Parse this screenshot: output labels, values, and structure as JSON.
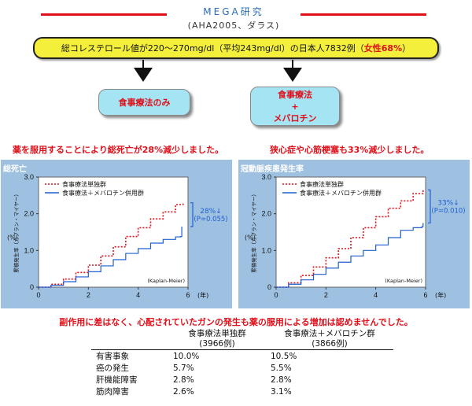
{
  "header": {
    "title": "MEGA研究",
    "subtitle": "(AHA2005、ダラス)"
  },
  "top_box": {
    "text_main": "総コレステロール値が220～270mg/dl（平均243mg/dl）の日本人7832例（",
    "text_highlight": "女性68%",
    "text_close": "）"
  },
  "groups": {
    "diet_only": "食事療法のみ",
    "diet_plus_line1": "食事療法",
    "diet_plus_line2": "+",
    "diet_plus_line3": "メバロチン"
  },
  "conclusions": {
    "left": "薬を服用することにより総死亡が28%減少しました。",
    "right": "狭心症や心筋梗塞も33%減少しました。"
  },
  "colors": {
    "red_series": "#e0101a",
    "blue_series": "#1f5fd0",
    "panel_bg": "#9fc1e1",
    "yellow_box": "#f3ef3a",
    "group_box": "#a5e4f2"
  },
  "chart_data": [
    {
      "type": "line",
      "title": "総死亡",
      "ylabel": "累積発生率（カプラン・マイヤー）",
      "y_unit": "(%)",
      "x_unit": "(年)",
      "xlim": [
        0,
        6
      ],
      "ylim": [
        0,
        3.0
      ],
      "x_ticks": [
        "0",
        "2",
        "4",
        "6"
      ],
      "y_ticks": [
        "0",
        "1.0",
        "2.0",
        "3.0"
      ],
      "annotation_value": "28%↓",
      "annotation_p": "(P=0.055)",
      "method_label": "(Kaplan-Meier)",
      "series": [
        {
          "name": "食事療法単独群",
          "style": "dotted",
          "color": "#e0101a",
          "points": [
            [
              0,
              0
            ],
            [
              0.5,
              0.08
            ],
            [
              1,
              0.22
            ],
            [
              1.5,
              0.4
            ],
            [
              2,
              0.6
            ],
            [
              2.5,
              0.85
            ],
            [
              3,
              1.1
            ],
            [
              3.5,
              1.38
            ],
            [
              4,
              1.62
            ],
            [
              4.5,
              1.86
            ],
            [
              5,
              2.05
            ],
            [
              5.5,
              2.25
            ],
            [
              5.8,
              2.3
            ]
          ]
        },
        {
          "name": "食事療法＋メバロチン併用群",
          "style": "solid",
          "color": "#1f5fd0",
          "points": [
            [
              0,
              0
            ],
            [
              0.5,
              0.05
            ],
            [
              1,
              0.15
            ],
            [
              1.5,
              0.28
            ],
            [
              2,
              0.42
            ],
            [
              2.5,
              0.58
            ],
            [
              3,
              0.75
            ],
            [
              3.5,
              0.92
            ],
            [
              4,
              1.05
            ],
            [
              4.5,
              1.2
            ],
            [
              5,
              1.3
            ],
            [
              5.5,
              1.37
            ],
            [
              5.7,
              1.38
            ],
            [
              5.75,
              1.65
            ]
          ]
        }
      ]
    },
    {
      "type": "line",
      "title": "冠動脈疾患発生率",
      "ylabel": "累積発生率（カプラン・マイヤー）",
      "y_unit": "(%)",
      "x_unit": "(年)",
      "xlim": [
        0,
        6
      ],
      "ylim": [
        0,
        3.0
      ],
      "x_ticks": [
        "0",
        "2",
        "4",
        "6"
      ],
      "y_ticks": [
        "0",
        "1.0",
        "2.0",
        "3.0"
      ],
      "annotation_value": "33%↓",
      "annotation_p": "(P=0.010)",
      "method_label": "(Kaplan-Meier)",
      "series": [
        {
          "name": "食事療法単独群",
          "style": "dotted",
          "color": "#e0101a",
          "points": [
            [
              0,
              0
            ],
            [
              0.5,
              0.12
            ],
            [
              1,
              0.32
            ],
            [
              1.5,
              0.55
            ],
            [
              2,
              0.8
            ],
            [
              2.5,
              1.05
            ],
            [
              3,
              1.35
            ],
            [
              3.5,
              1.62
            ],
            [
              4,
              1.92
            ],
            [
              4.5,
              2.15
            ],
            [
              5,
              2.35
            ],
            [
              5.5,
              2.55
            ],
            [
              5.9,
              2.65
            ]
          ]
        },
        {
          "name": "食事療法＋メバロチン併用群",
          "style": "solid",
          "color": "#1f5fd0",
          "points": [
            [
              0,
              0
            ],
            [
              0.5,
              0.08
            ],
            [
              1,
              0.2
            ],
            [
              1.5,
              0.35
            ],
            [
              2,
              0.52
            ],
            [
              2.5,
              0.68
            ],
            [
              3,
              0.85
            ],
            [
              3.5,
              1.0
            ],
            [
              4,
              1.15
            ],
            [
              4.5,
              1.35
            ],
            [
              5,
              1.55
            ],
            [
              5.5,
              1.62
            ],
            [
              5.85,
              1.65
            ],
            [
              5.9,
              1.75
            ]
          ]
        }
      ]
    }
  ],
  "side_effects": {
    "note": "副作用に差はなく、心配されていたガンの発生も薬の服用による増加は認めませんでした。",
    "col1_line1": "食事療法単独群",
    "col1_line2": "(3966例)",
    "col2_line1": "食事療法＋メバロチン群",
    "col2_line2": "(3866例)",
    "rows": [
      {
        "label": "有害事象",
        "a": "10.0%",
        "b": "10.5%"
      },
      {
        "label": "癌の発生",
        "a": "5.7%",
        "b": "5.5%"
      },
      {
        "label": "肝機能障害",
        "a": "2.8%",
        "b": "2.8%"
      },
      {
        "label": "筋肉障害",
        "a": "2.6%",
        "b": "3.1%"
      }
    ]
  }
}
